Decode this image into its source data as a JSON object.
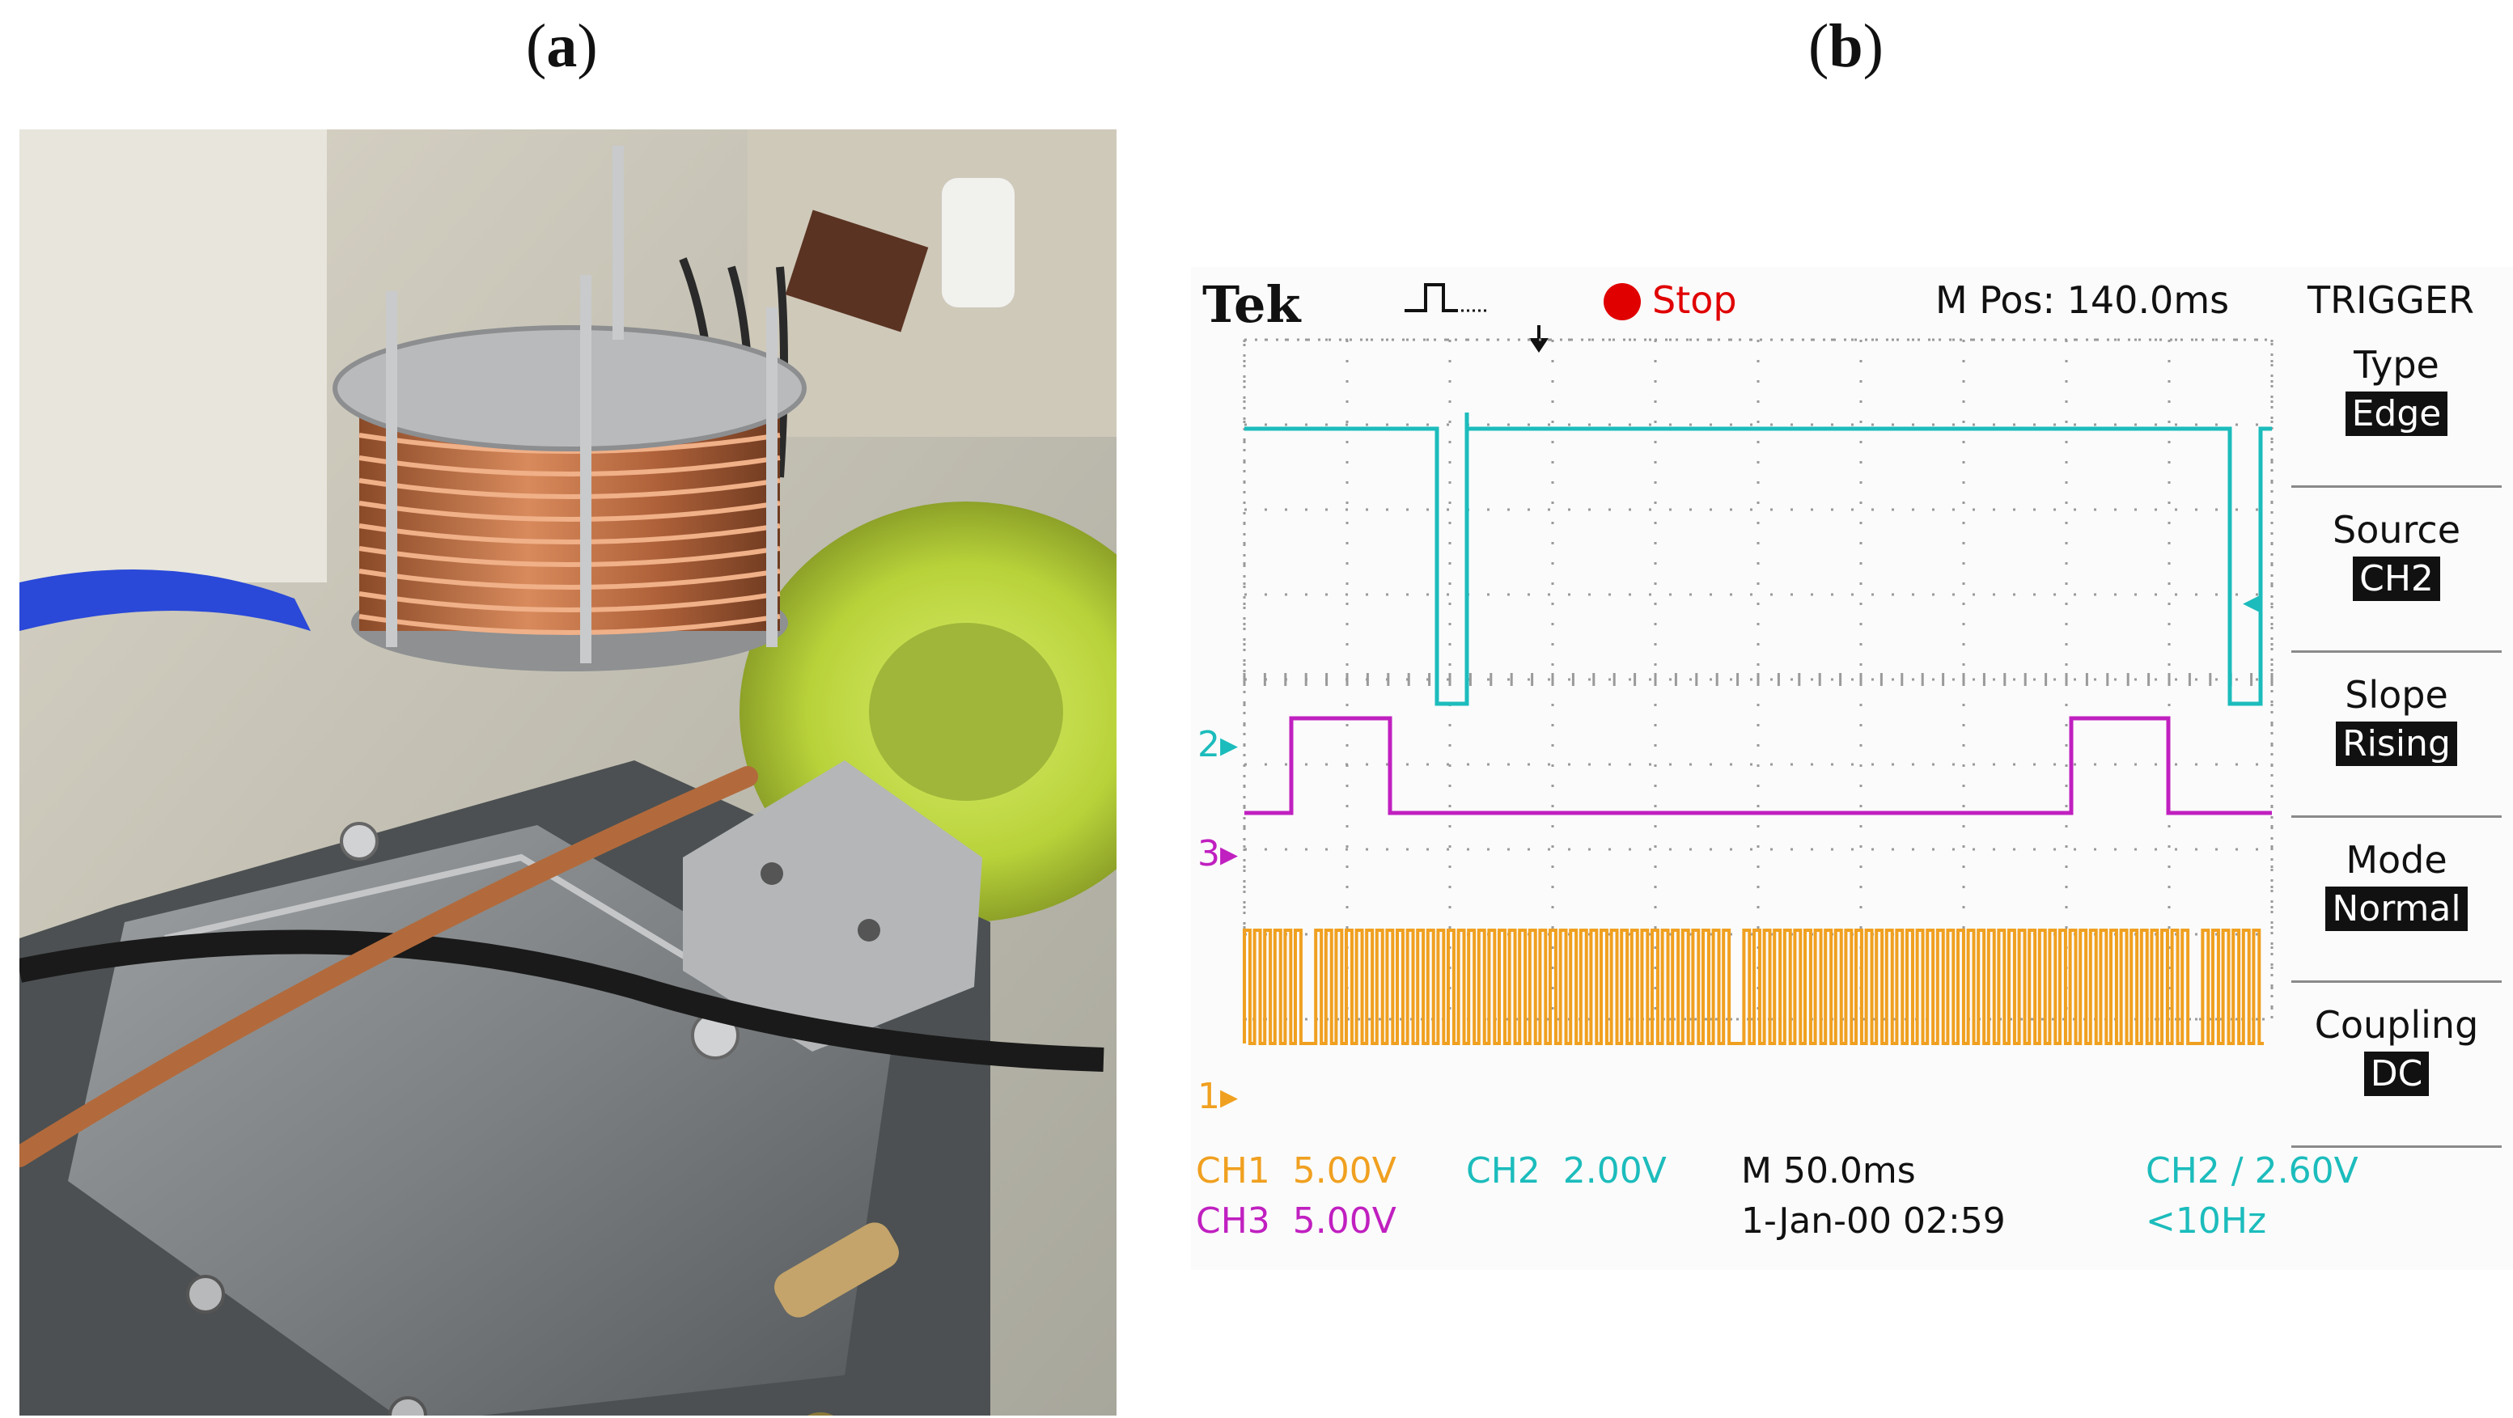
{
  "panels": {
    "a_label": "a",
    "b_label": "b"
  },
  "scope": {
    "brand": "Tek",
    "run_state": "Stop",
    "m_pos": "M Pos: 140.0ms",
    "menu_title": "TRIGGER",
    "menu": [
      {
        "label": "Type",
        "value": "Edge"
      },
      {
        "label": "Source",
        "value": "CH2"
      },
      {
        "label": "Slope",
        "value": "Rising"
      },
      {
        "label": "Mode",
        "value": "Normal"
      },
      {
        "label": "Coupling",
        "value": "DC"
      }
    ],
    "channel_markers": {
      "ch2": "2",
      "ch3": "3",
      "ch1": "1"
    },
    "bottom": {
      "ch1_name": "CH1",
      "ch1_scale": "5.00V",
      "ch2_name": "CH2",
      "ch2_scale": "2.00V",
      "ch3_name": "CH3",
      "ch3_scale": "5.00V",
      "timebase": "M 50.0ms",
      "date": "1-Jan-00 02:59",
      "trigger_source": "CH2",
      "trigger_level": "2.60V",
      "trigger_freq": "<10Hz"
    },
    "colors": {
      "ch1": "#f0a020",
      "ch2": "#1cbcbc",
      "ch3": "#c020c0",
      "stop": "#e00000"
    }
  }
}
